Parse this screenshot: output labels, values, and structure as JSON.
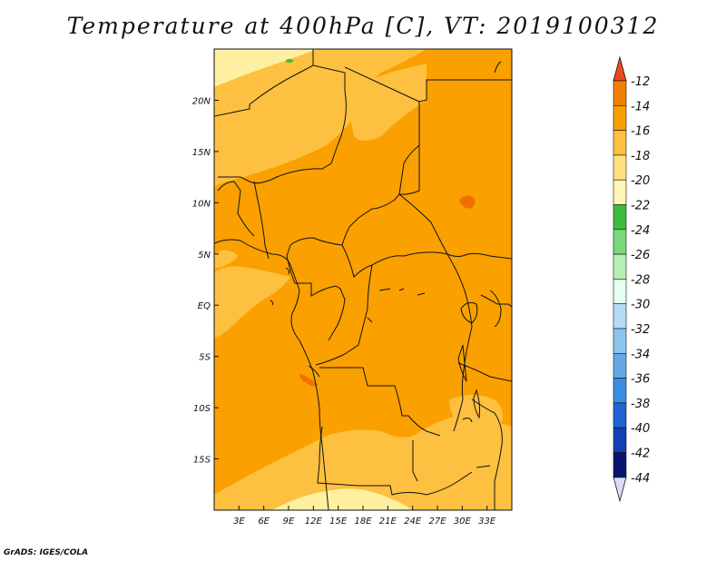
{
  "title": "Temperature at 400hPa [C], VT: 2019100312",
  "credit": "GrADS: IGES/COLA",
  "map": {
    "lon_range": [
      0,
      36
    ],
    "lat_range": [
      -20,
      25
    ],
    "lat_ticks": [
      "20N",
      "15N",
      "10N",
      "5N",
      "EQ",
      "5S",
      "10S",
      "15S"
    ],
    "lon_ticks": [
      "3E",
      "6E",
      "9E",
      "12E",
      "15E",
      "18E",
      "21E",
      "24E",
      "27E",
      "30E",
      "33E"
    ],
    "fill_colors": {
      "pale": "#ffefa0",
      "light": "#fdc040",
      "mid": "#faa000",
      "dark": "#f07000",
      "green": "#3dbb3d"
    }
  },
  "colorbar": {
    "levels": [
      "-12",
      "-14",
      "-16",
      "-18",
      "-20",
      "-22",
      "-24",
      "-26",
      "-28",
      "-30",
      "-32",
      "-34",
      "-36",
      "-38",
      "-40",
      "-42",
      "-44"
    ],
    "colors": [
      "#e05000",
      "#f08000",
      "#faa000",
      "#fdc040",
      "#ffe080",
      "#fff6b4",
      "#3dbb3d",
      "#7ad87a",
      "#b4f0b4",
      "#e6fff0",
      "#b4dcf5",
      "#8cc4ee",
      "#64a8e6",
      "#3c8ce0",
      "#1e64d2",
      "#1040b4",
      "#0a1470"
    ],
    "top_color": "#e84a1e",
    "bottom_color": "#dcdcf5"
  }
}
